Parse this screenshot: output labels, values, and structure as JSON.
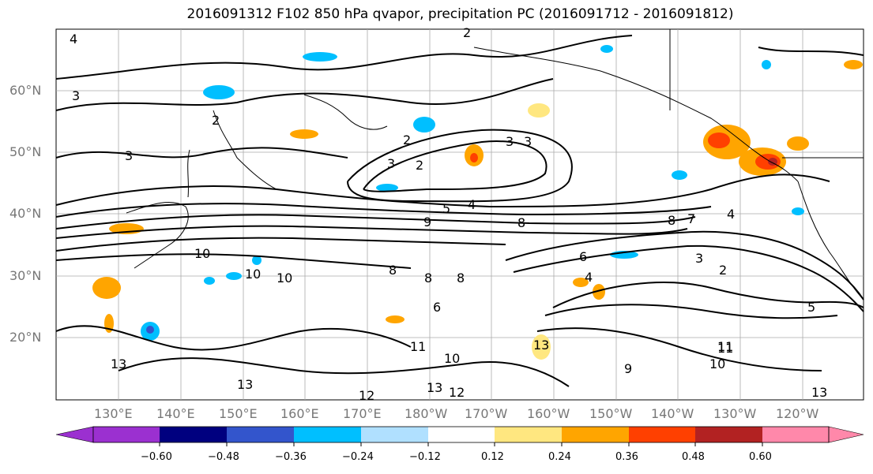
{
  "title": "2016091312 F102 850 hPa qvapor, precipitation PC (2016091712 - 2016091812)",
  "lat_labels": [
    "60°N",
    "50°N",
    "40°N",
    "30°N",
    "20°N"
  ],
  "lon_labels": [
    "130°E",
    "140°E",
    "150°E",
    "160°E",
    "170°E",
    "180°W",
    "170°W",
    "160°W",
    "150°W",
    "140°W",
    "130°W",
    "120°W"
  ],
  "contour_labels": [
    "4",
    "3",
    "2",
    "3",
    "2",
    "3",
    "2",
    "2",
    "3",
    "3",
    "5",
    "4",
    "9",
    "8",
    "8",
    "7",
    "4",
    "10",
    "10",
    "10",
    "8",
    "8",
    "8",
    "6",
    "6",
    "3",
    "2",
    "5",
    "4",
    "11",
    "13",
    "13",
    "11",
    "10",
    "13",
    "12",
    "13",
    "11",
    "10",
    "12",
    "9",
    "13"
  ],
  "colorbar": {
    "ticks": [
      "−0.60",
      "−0.48",
      "−0.36",
      "−0.24",
      "−0.12",
      "0.12",
      "0.24",
      "0.36",
      "0.48",
      "0.60"
    ],
    "colors": [
      "#9b30d0",
      "#00007f",
      "#3355cc",
      "#00bfff",
      "#b0e0ff",
      "#ffffff",
      "#ffe780",
      "#ffa500",
      "#ff4000",
      "#b22222",
      "#ff88aa"
    ]
  },
  "colors": {
    "contour": "#000000",
    "grid": "#999999",
    "coast": "#000000"
  }
}
